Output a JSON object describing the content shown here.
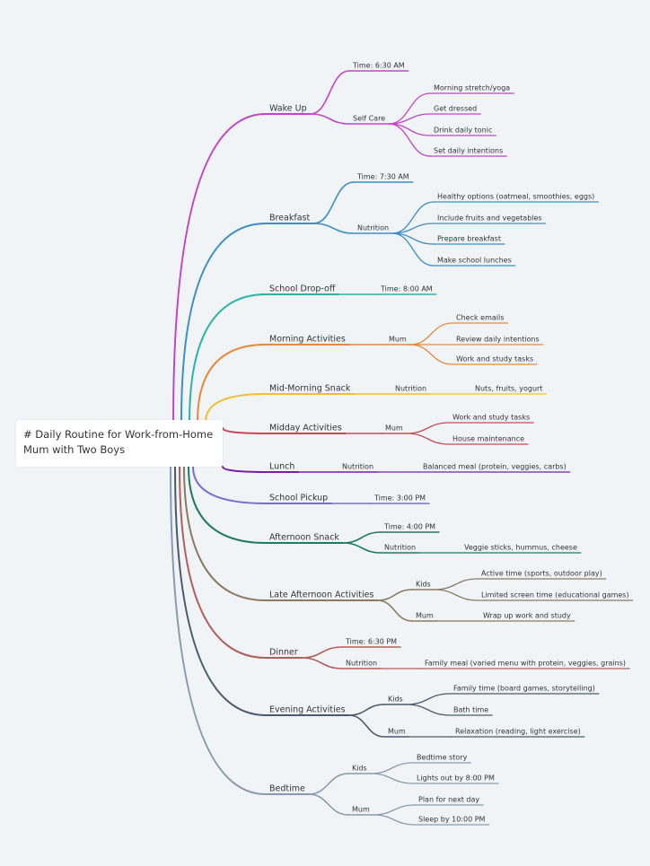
{
  "root": "# Daily Routine for Work-from-Home Mum with Two Boys",
  "branches": [
    {
      "label": "Wake Up",
      "children": [
        {
          "label": "Time: 6:30 AM",
          "children": []
        },
        {
          "label": "Self Care",
          "children": [
            {
              "label": "Morning stretch/yoga"
            },
            {
              "label": "Get dressed"
            },
            {
              "label": "Drink daily tonic"
            },
            {
              "label": "Set daily intentions"
            }
          ]
        }
      ]
    },
    {
      "label": "Breakfast",
      "children": [
        {
          "label": "Time: 7:30 AM",
          "children": []
        },
        {
          "label": "Nutrition",
          "children": [
            {
              "label": "Healthy options (oatmeal, smoothies, eggs)"
            },
            {
              "label": "Include fruits and vegetables"
            },
            {
              "label": "Prepare breakfast"
            },
            {
              "label": "Make school lunches"
            }
          ]
        }
      ]
    },
    {
      "label": "School Drop-off",
      "children": [
        {
          "label": "Time: 8:00 AM",
          "children": []
        }
      ]
    },
    {
      "label": "Morning Activities",
      "children": [
        {
          "label": "Mum",
          "children": [
            {
              "label": "Check emails"
            },
            {
              "label": "Review daily intentions"
            },
            {
              "label": "Work and study tasks"
            }
          ]
        }
      ]
    },
    {
      "label": "Mid-Morning Snack",
      "children": [
        {
          "label": "Nutrition",
          "children": [
            {
              "label": "Nuts, fruits, yogurt"
            }
          ]
        }
      ]
    },
    {
      "label": "Midday Activities",
      "children": [
        {
          "label": "Mum",
          "children": [
            {
              "label": "Work and study tasks"
            },
            {
              "label": "House maintenance"
            }
          ]
        }
      ]
    },
    {
      "label": "Lunch",
      "children": [
        {
          "label": "Nutrition",
          "children": [
            {
              "label": "Balanced meal (protein, veggies, carbs)"
            }
          ]
        }
      ]
    },
    {
      "label": "School Pickup",
      "children": [
        {
          "label": "Time: 3:00 PM",
          "children": []
        }
      ]
    },
    {
      "label": "Afternoon Snack",
      "children": [
        {
          "label": "Time: 4:00 PM",
          "children": []
        },
        {
          "label": "Nutrition",
          "children": [
            {
              "label": "Veggie sticks, hummus, cheese"
            }
          ]
        }
      ]
    },
    {
      "label": "Late Afternoon Activities",
      "children": [
        {
          "label": "Kids",
          "children": [
            {
              "label": "Active time (sports, outdoor play)"
            },
            {
              "label": "Limited screen time (educational games)"
            }
          ]
        },
        {
          "label": "Mum",
          "children": [
            {
              "label": "Wrap up work and study"
            }
          ]
        }
      ]
    },
    {
      "label": "Dinner",
      "children": [
        {
          "label": "Time: 6:30 PM",
          "children": []
        },
        {
          "label": "Nutrition",
          "children": [
            {
              "label": "Family meal (varied menu with protein, veggies, grains)"
            }
          ]
        }
      ]
    },
    {
      "label": "Evening Activities",
      "children": [
        {
          "label": "Kids",
          "children": [
            {
              "label": "Family time (board games, storytelling)"
            },
            {
              "label": "Bath time"
            }
          ]
        },
        {
          "label": "Mum",
          "children": [
            {
              "label": "Relaxation (reading, light exercise)"
            }
          ]
        }
      ]
    },
    {
      "label": "Bedtime",
      "children": [
        {
          "label": "Kids",
          "children": [
            {
              "label": "Bedtime story"
            },
            {
              "label": "Lights out by 8:00 PM"
            }
          ]
        },
        {
          "label": "Mum",
          "children": [
            {
              "label": "Plan for next day"
            },
            {
              "label": "Sleep by 10:00 PM"
            }
          ]
        }
      ]
    }
  ]
}
